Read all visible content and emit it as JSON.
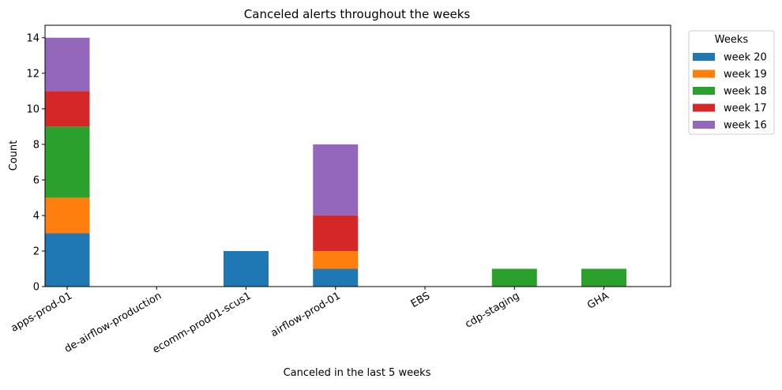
{
  "chart_data": {
    "type": "bar",
    "stacked": true,
    "title": "Canceled alerts throughout the weeks",
    "xlabel": "Canceled in the last 5 weeks",
    "ylabel": "Count",
    "ylim": [
      0,
      14.7
    ],
    "yticks": [
      0,
      2,
      4,
      6,
      8,
      10,
      12,
      14
    ],
    "grid": false,
    "legend": {
      "title": "Weeks",
      "placement": "outside-top-right"
    },
    "categories": [
      "apps-prod-01",
      "de-airflow-production",
      "ecomm-prod01-scus1",
      "airflow-prod-01",
      "EBS",
      "cdp-staging",
      "GHA"
    ],
    "series": [
      {
        "name": "week 20",
        "color": "#1f77b4",
        "values": [
          3,
          0,
          2,
          1,
          0,
          0,
          0
        ]
      },
      {
        "name": "week 19",
        "color": "#ff7f0e",
        "values": [
          2,
          0,
          0,
          1,
          0,
          0,
          0
        ]
      },
      {
        "name": "week 18",
        "color": "#2ca02c",
        "values": [
          4,
          0,
          0,
          0,
          0,
          1,
          1
        ]
      },
      {
        "name": "week 17",
        "color": "#d62728",
        "values": [
          2,
          0,
          0,
          2,
          0,
          0,
          0
        ]
      },
      {
        "name": "week 16",
        "color": "#9467bd",
        "values": [
          3,
          0,
          0,
          4,
          0,
          0,
          0
        ]
      }
    ]
  }
}
